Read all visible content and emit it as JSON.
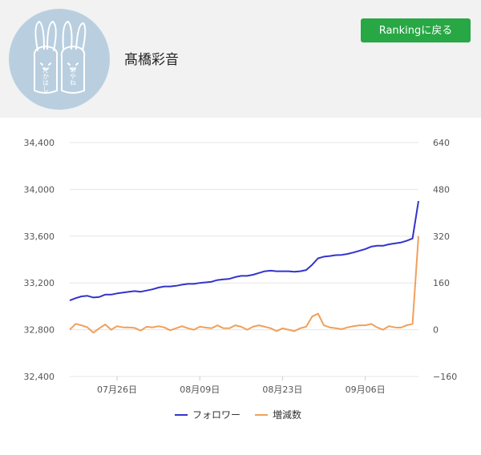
{
  "profile": {
    "name": "髙橋彩音"
  },
  "header": {
    "ranking_button_label": "Rankingに戻る"
  },
  "avatar": {
    "text_left": "たかはし",
    "text_right": "あやね"
  },
  "colors": {
    "followers": "#3333cc",
    "change": "#f0a05a",
    "button": "#28a745",
    "grid": "#e5e5e5"
  },
  "chart_data": {
    "type": "line",
    "x_tick_labels": [
      "07月26日",
      "08月09日",
      "08月23日",
      "09月06日"
    ],
    "x_tick_positions": [
      8,
      22,
      36,
      50
    ],
    "y_left_ticks": [
      "34,400",
      "34,000",
      "33,600",
      "33,200",
      "32,800",
      "32,400"
    ],
    "y_right_ticks": [
      "640",
      "480",
      "320",
      "160",
      "0",
      "−160"
    ],
    "y_left_range": [
      32400,
      34400
    ],
    "y_right_range": [
      -160,
      640
    ],
    "series": [
      {
        "name": "フォロワー",
        "axis": "left",
        "values": [
          33050,
          33070,
          33085,
          33090,
          33075,
          33080,
          33100,
          33100,
          33110,
          33118,
          33125,
          33130,
          33125,
          33135,
          33145,
          33160,
          33170,
          33170,
          33175,
          33185,
          33192,
          33192,
          33200,
          33205,
          33210,
          33225,
          33230,
          33235,
          33250,
          33260,
          33260,
          33270,
          33285,
          33300,
          33305,
          33300,
          33300,
          33300,
          33295,
          33300,
          33310,
          33355,
          33410,
          33425,
          33430,
          33438,
          33440,
          33448,
          33460,
          33475,
          33490,
          33510,
          33518,
          33518,
          33530,
          33538,
          33545,
          33560,
          33580,
          33900
        ]
      },
      {
        "name": "増減数",
        "axis": "right",
        "values": [
          0,
          20,
          15,
          8,
          -10,
          5,
          18,
          0,
          12,
          8,
          8,
          6,
          -3,
          10,
          8,
          12,
          8,
          -2,
          5,
          12,
          5,
          0,
          10,
          7,
          5,
          15,
          5,
          5,
          15,
          10,
          0,
          10,
          15,
          10,
          5,
          -5,
          5,
          0,
          -5,
          5,
          10,
          45,
          55,
          15,
          8,
          5,
          2,
          8,
          12,
          15,
          15,
          20,
          8,
          0,
          12,
          8,
          7,
          15,
          20,
          320
        ]
      }
    ]
  }
}
